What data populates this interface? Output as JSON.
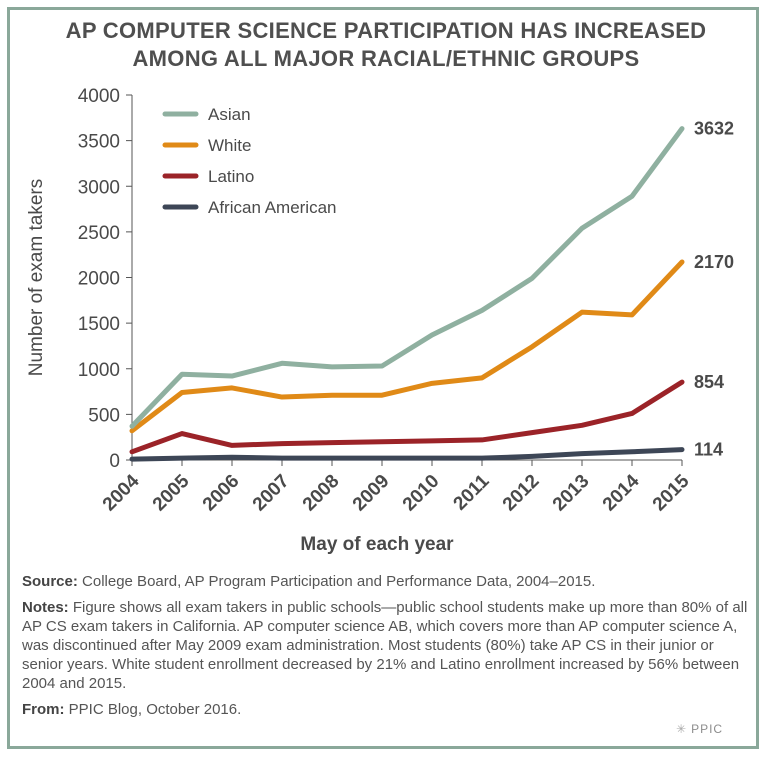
{
  "title_line1": "AP COMPUTER SCIENCE PARTICIPATION HAS INCREASED",
  "title_line2": "AMONG ALL MAJOR RACIAL/ETHNIC GROUPS",
  "chart_data": {
    "type": "line",
    "title": "AP COMPUTER SCIENCE PARTICIPATION HAS INCREASED AMONG ALL MAJOR RACIAL/ETHNIC GROUPS",
    "xlabel": "May of each year",
    "ylabel": "Number of exam takers",
    "ylim": [
      0,
      4000
    ],
    "yticks": [
      0,
      500,
      1000,
      1500,
      2000,
      2500,
      3000,
      3500,
      4000
    ],
    "x": [
      "2004",
      "2005",
      "2006",
      "2007",
      "2008",
      "2009",
      "2010",
      "2011",
      "2012",
      "2013",
      "2014",
      "2015"
    ],
    "legend_position": "top-left",
    "grid": false,
    "series": [
      {
        "name": "Asian",
        "color": "#8fb0a0",
        "values": [
          370,
          940,
          920,
          1060,
          1020,
          1030,
          1370,
          1640,
          1990,
          2540,
          2890,
          3632
        ],
        "end_label": "3632"
      },
      {
        "name": "White",
        "color": "#e08a17",
        "values": [
          320,
          740,
          790,
          690,
          710,
          710,
          840,
          900,
          1240,
          1620,
          1590,
          2170
        ],
        "end_label": "2170"
      },
      {
        "name": "Latino",
        "color": "#9b2328",
        "values": [
          90,
          290,
          160,
          180,
          190,
          200,
          210,
          220,
          300,
          380,
          510,
          854
        ],
        "end_label": "854"
      },
      {
        "name": "African American",
        "color": "#3d4656",
        "values": [
          10,
          20,
          30,
          20,
          20,
          20,
          20,
          20,
          40,
          70,
          90,
          114
        ],
        "end_label": "114"
      }
    ]
  },
  "notes": {
    "source_label": "Source:",
    "source_text": " College Board, AP Program Participation and Performance Data, 2004–2015.",
    "notes_label": "Notes:",
    "notes_text": " Figure shows all exam takers in public schools—public school students make up more than 80% of all AP CS exam takers in California. AP computer science AB, which covers more than AP computer science A, was discontinued after May 2009 exam administration. Most students (80%) take AP CS in their junior or senior years. White student enrollment decreased by 21% and Latino enrollment increased by 56% between 2004 and 2015.",
    "from_label": "From:",
    "from_text": " PPIC Blog, October 2016."
  },
  "logo_text": "PPIC"
}
